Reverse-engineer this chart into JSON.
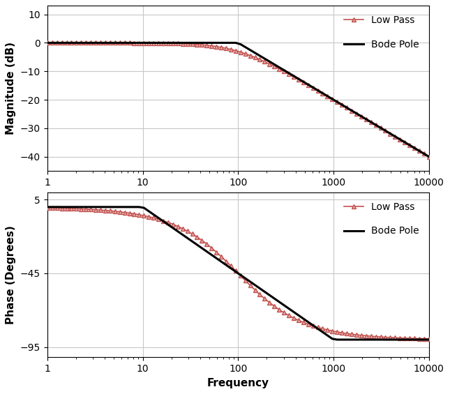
{
  "fc": 100,
  "f_min": 1,
  "f_max": 10000,
  "mag_ylim": [
    -45,
    13
  ],
  "mag_yticks": [
    10,
    0,
    -10,
    -20,
    -30,
    -40
  ],
  "phase_ylim": [
    -102,
    10
  ],
  "phase_yticks": [
    5,
    -45,
    -95
  ],
  "mag_ylabel": "Magnitude (dB)",
  "phase_ylabel": "Phase (Degrees)",
  "xlabel": "Frequency",
  "lp_label": "Low Pass",
  "bode_label": "Bode Pole",
  "lp_color": "#e8a8a8",
  "lp_edge_color": "#c0504d",
  "bode_color": "#000000",
  "bode_linewidth": 2.2,
  "lp_linewidth": 1.2,
  "marker": "^",
  "marker_size": 5,
  "label_fontsize": 11,
  "tick_fontsize": 10,
  "legend_fontsize": 10,
  "bg_color": "#ffffff",
  "grid_color": "#c8c8c8",
  "n_points": 80,
  "figsize": [
    6.45,
    5.65
  ],
  "dpi": 100
}
